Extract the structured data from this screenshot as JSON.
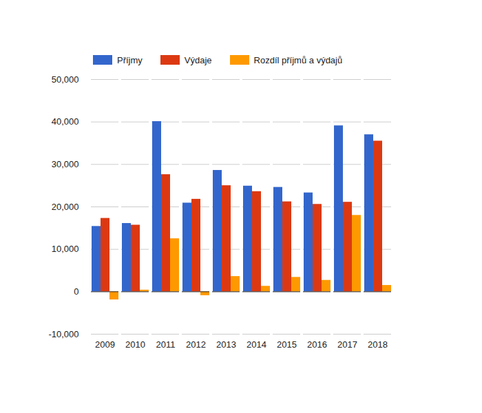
{
  "chart_data": {
    "type": "bar",
    "categories": [
      "2009",
      "2010",
      "2011",
      "2012",
      "2013",
      "2014",
      "2015",
      "2016",
      "2017",
      "2018"
    ],
    "series": [
      {
        "name": "Příjmy",
        "color": "#3366cc",
        "values": [
          15400,
          16100,
          40100,
          20900,
          28600,
          24900,
          24600,
          23300,
          39100,
          37000
        ]
      },
      {
        "name": "Výdaje",
        "color": "#dc3912",
        "values": [
          17300,
          15700,
          27600,
          21800,
          25000,
          23600,
          21200,
          20600,
          21100,
          35500
        ]
      },
      {
        "name": "Rozdíl příjmů a výdajů",
        "color": "#ff9900",
        "values": [
          -1900,
          400,
          12500,
          -900,
          3600,
          1300,
          3400,
          2700,
          18000,
          1500
        ]
      }
    ],
    "ylim": [
      -10000,
      50000
    ],
    "yticks": [
      {
        "value": -10000,
        "label": "-10,000"
      },
      {
        "value": 0,
        "label": "0"
      },
      {
        "value": 10000,
        "label": "10,000"
      },
      {
        "value": 20000,
        "label": "20,000"
      },
      {
        "value": 30000,
        "label": "30,000"
      },
      {
        "value": 40000,
        "label": "40,000"
      },
      {
        "value": 50000,
        "label": "50,000"
      }
    ],
    "grid": true,
    "legend": "top-left"
  }
}
